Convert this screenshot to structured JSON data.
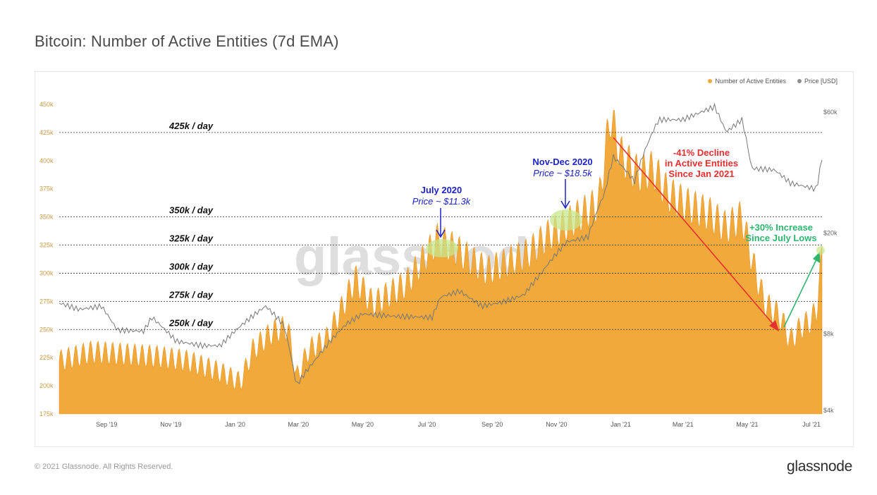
{
  "title": "Bitcoin: Number of Active Entities (7d EMA)",
  "footer": {
    "copyright": "© 2021 Glassnode. All Rights Reserved.",
    "logo": "glassnode"
  },
  "watermark": "glassnode",
  "colors": {
    "entities": "#f2a93b",
    "price": "#8f8f8f",
    "decline": "#e53030",
    "increase": "#2db56e",
    "callout": "#1d22c4",
    "highlight": "#c8e68c"
  },
  "chart_data": {
    "type": "area",
    "legend": [
      {
        "name": "Number of Active Entities",
        "color": "#f2a93b"
      },
      {
        "name": "Price [USD]",
        "color": "#8f8f8f"
      }
    ],
    "x_ticks": [
      "Sep '19",
      "Nov '19",
      "Jan '20",
      "Mar '20",
      "May '20",
      "Jul '20",
      "Sep '20",
      "Nov '20",
      "Jan '21",
      "Mar '21",
      "May '21",
      "Jul '21"
    ],
    "x_range": [
      "2019-08-01",
      "2021-07-25"
    ],
    "y_left": {
      "ticks": [
        "175k",
        "200k",
        "225k",
        "250k",
        "275k",
        "300k",
        "325k",
        "350k",
        "375k",
        "400k",
        "425k",
        "450k"
      ],
      "range": [
        175000,
        455000
      ]
    },
    "y_right": {
      "ticks": [
        "$4k",
        "$8k",
        "$20k",
        "$60k"
      ],
      "scale": "log"
    },
    "reference_lines": [
      {
        "label": "425k / day",
        "value": 425000
      },
      {
        "label": "350k / day",
        "value": 350000
      },
      {
        "label": "325k / day",
        "value": 325000
      },
      {
        "label": "300k / day",
        "value": 300000
      },
      {
        "label": "275k / day",
        "value": 275000
      },
      {
        "label": "250k / day",
        "value": 250000
      }
    ],
    "series": [
      {
        "name": "Number of Active Entities",
        "points": [
          [
            "2019-08-01",
            222000
          ],
          [
            "2019-09-01",
            230000
          ],
          [
            "2019-10-01",
            228000
          ],
          [
            "2019-11-01",
            226000
          ],
          [
            "2019-12-01",
            222000
          ],
          [
            "2020-01-01",
            212000
          ],
          [
            "2020-01-20",
            203000
          ],
          [
            "2020-02-01",
            232000
          ],
          [
            "2020-02-20",
            248000
          ],
          [
            "2020-03-05",
            252000
          ],
          [
            "2020-03-13",
            207000
          ],
          [
            "2020-03-25",
            232000
          ],
          [
            "2020-04-10",
            240000
          ],
          [
            "2020-04-25",
            268000
          ],
          [
            "2020-05-08",
            295000
          ],
          [
            "2020-05-25",
            272000
          ],
          [
            "2020-06-10",
            282000
          ],
          [
            "2020-06-25",
            290000
          ],
          [
            "2020-07-10",
            310000
          ],
          [
            "2020-07-25",
            330000
          ],
          [
            "2020-08-10",
            322000
          ],
          [
            "2020-08-25",
            312000
          ],
          [
            "2020-09-10",
            302000
          ],
          [
            "2020-10-01",
            310000
          ],
          [
            "2020-10-20",
            318000
          ],
          [
            "2020-11-05",
            332000
          ],
          [
            "2020-11-20",
            340000
          ],
          [
            "2020-12-05",
            350000
          ],
          [
            "2020-12-25",
            362000
          ],
          [
            "2021-01-05",
            440000
          ],
          [
            "2021-01-15",
            405000
          ],
          [
            "2021-01-31",
            388000
          ],
          [
            "2021-02-15",
            392000
          ],
          [
            "2021-03-01",
            370000
          ],
          [
            "2021-03-20",
            360000
          ],
          [
            "2021-04-10",
            352000
          ],
          [
            "2021-04-25",
            340000
          ],
          [
            "2021-05-10",
            350000
          ],
          [
            "2021-05-20",
            310000
          ],
          [
            "2021-06-01",
            272000
          ],
          [
            "2021-06-15",
            262000
          ],
          [
            "2021-06-25",
            240000
          ],
          [
            "2021-07-05",
            252000
          ],
          [
            "2021-07-15",
            258000
          ],
          [
            "2021-07-20",
            268000
          ],
          [
            "2021-07-25",
            318000
          ]
        ]
      },
      {
        "name": "Price [USD]",
        "points": [
          [
            "2019-08-01",
            10600
          ],
          [
            "2019-08-20",
            10000
          ],
          [
            "2019-09-10",
            10300
          ],
          [
            "2019-09-25",
            8300
          ],
          [
            "2019-10-20",
            8200
          ],
          [
            "2019-10-28",
            9300
          ],
          [
            "2019-11-20",
            7500
          ],
          [
            "2019-12-15",
            7200
          ],
          [
            "2020-01-01",
            7200
          ],
          [
            "2020-01-20",
            8600
          ],
          [
            "2020-02-13",
            10300
          ],
          [
            "2020-03-01",
            8700
          ],
          [
            "2020-03-13",
            5000
          ],
          [
            "2020-04-01",
            6400
          ],
          [
            "2020-04-30",
            8800
          ],
          [
            "2020-05-15",
            9600
          ],
          [
            "2020-06-15",
            9400
          ],
          [
            "2020-07-20",
            9300
          ],
          [
            "2020-07-28",
            11200
          ],
          [
            "2020-08-15",
            11800
          ],
          [
            "2020-09-05",
            10300
          ],
          [
            "2020-09-25",
            10700
          ],
          [
            "2020-10-15",
            11400
          ],
          [
            "2020-10-31",
            13800
          ],
          [
            "2020-11-25",
            18500
          ],
          [
            "2020-12-15",
            19300
          ],
          [
            "2020-12-31",
            29000
          ],
          [
            "2021-01-08",
            40000
          ],
          [
            "2021-01-28",
            32000
          ],
          [
            "2021-02-20",
            56000
          ],
          [
            "2021-03-15",
            56000
          ],
          [
            "2021-04-14",
            63000
          ],
          [
            "2021-04-25",
            50000
          ],
          [
            "2021-05-10",
            56000
          ],
          [
            "2021-05-19",
            36000
          ],
          [
            "2021-06-10",
            35500
          ],
          [
            "2021-06-25",
            31500
          ],
          [
            "2021-07-20",
            29800
          ],
          [
            "2021-07-25",
            39500
          ]
        ]
      }
    ],
    "annotations": [
      {
        "title": "July 2020",
        "subtitle": "Price ~ $11.3k"
      },
      {
        "title": "Nov-Dec 2020",
        "subtitle": "Price ~ $18.5k"
      },
      {
        "lines": [
          "-41% Decline",
          "in Active Entities",
          "Since Jan 2021"
        ]
      },
      {
        "lines": [
          "+30% Increase",
          "Since July Lows"
        ]
      }
    ]
  }
}
